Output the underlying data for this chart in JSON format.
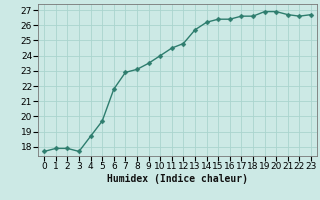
{
  "x": [
    0,
    1,
    2,
    3,
    4,
    5,
    6,
    7,
    8,
    9,
    10,
    11,
    12,
    13,
    14,
    15,
    16,
    17,
    18,
    19,
    20,
    21,
    22,
    23
  ],
  "y": [
    17.7,
    17.9,
    17.9,
    17.7,
    18.7,
    19.7,
    21.8,
    22.9,
    23.1,
    23.5,
    24.0,
    24.5,
    24.8,
    25.7,
    26.2,
    26.4,
    26.4,
    26.6,
    26.6,
    26.9,
    26.9,
    26.7,
    26.6,
    26.7
  ],
  "line_color": "#2e7d6e",
  "marker_color": "#2e7d6e",
  "bg_color": "#cce9e5",
  "grid_color": "#aad4ce",
  "xlabel": "Humidex (Indice chaleur)",
  "ylabel_ticks": [
    18,
    19,
    20,
    21,
    22,
    23,
    24,
    25,
    26,
    27
  ],
  "ylim": [
    17.4,
    27.4
  ],
  "xlim": [
    -0.5,
    23.5
  ],
  "xlabel_fontsize": 7,
  "tick_fontsize": 6.5,
  "line_width": 1.0,
  "marker_size": 2.5
}
